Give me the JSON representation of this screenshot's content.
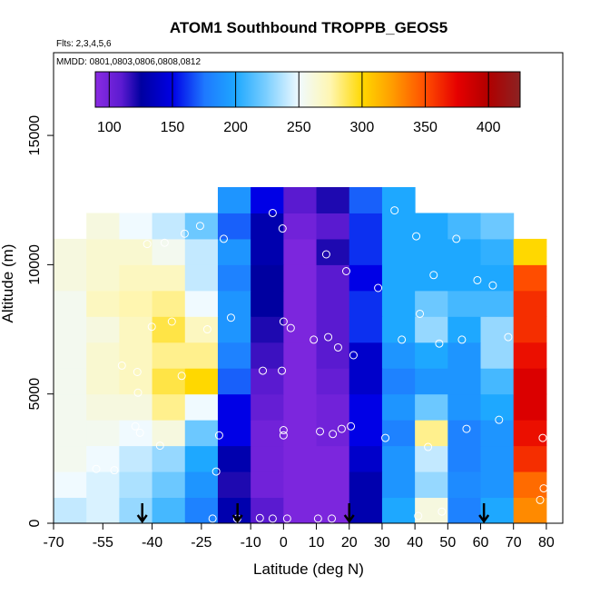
{
  "chart_data": {
    "type": "heatmap",
    "title": "ATOM1 Southbound TROPPB_GEOS5",
    "subtitle": "Flts: 2,3,4,5,6",
    "annotation": "MMDD: 0801,0803,0806,0808,0812",
    "x_label": "Latitude (deg N)",
    "y_label": "Altitude (m)",
    "xlim": [
      -70,
      85
    ],
    "ylim": [
      0,
      18200
    ],
    "xticks": [
      -70,
      -55,
      -40,
      -25,
      -10,
      0,
      10,
      20,
      30,
      40,
      50,
      60,
      70,
      80
    ],
    "yticks": [
      0,
      5000,
      10000,
      15000
    ],
    "xbins": [
      -70,
      -60,
      -50,
      -40,
      -30,
      -20,
      -10,
      0,
      10,
      20,
      30,
      40,
      50,
      60,
      70,
      80
    ],
    "ybins": [
      0,
      1000,
      2000,
      3000,
      4000,
      5000,
      6000,
      7000,
      8000,
      9000,
      10000,
      11000,
      12000,
      13000
    ],
    "z": [
      [
        240,
        245,
        230,
        210,
        180,
        130,
        110,
        95,
        95,
        130,
        200,
        260,
        180,
        200,
        330
      ],
      [
        250,
        245,
        235,
        220,
        190,
        120,
        100,
        95,
        95,
        130,
        190,
        230,
        185,
        190,
        340
      ],
      [
        255,
        250,
        240,
        230,
        200,
        130,
        100,
        95,
        95,
        140,
        190,
        240,
        180,
        190,
        360
      ],
      [
        255,
        255,
        250,
        260,
        220,
        150,
        100,
        95,
        100,
        150,
        180,
        280,
        180,
        190,
        370
      ],
      [
        255,
        260,
        260,
        280,
        250,
        150,
        105,
        95,
        100,
        150,
        190,
        220,
        190,
        200,
        380
      ],
      [
        255,
        265,
        270,
        290,
        300,
        170,
        110,
        95,
        105,
        140,
        180,
        190,
        190,
        210,
        380
      ],
      [
        255,
        265,
        270,
        280,
        280,
        180,
        115,
        95,
        110,
        140,
        190,
        200,
        190,
        230,
        370
      ],
      [
        255,
        260,
        270,
        290,
        270,
        190,
        120,
        95,
        110,
        160,
        200,
        230,
        200,
        230,
        360
      ],
      [
        255,
        270,
        275,
        280,
        250,
        190,
        125,
        95,
        110,
        160,
        200,
        220,
        210,
        210,
        360
      ],
      [
        260,
        265,
        270,
        270,
        240,
        180,
        125,
        95,
        110,
        150,
        200,
        200,
        200,
        200,
        350
      ],
      [
        260,
        265,
        265,
        255,
        240,
        190,
        130,
        95,
        120,
        160,
        200,
        200,
        200,
        205,
        300
      ],
      [
        null,
        260,
        250,
        240,
        220,
        170,
        130,
        100,
        110,
        160,
        200,
        200,
        210,
        220,
        null
      ],
      [
        null,
        null,
        null,
        null,
        null,
        190,
        150,
        110,
        120,
        170,
        200,
        null,
        null,
        null,
        null
      ]
    ],
    "colorlim": [
      89,
      425
    ],
    "colorticks": [
      100,
      150,
      200,
      250,
      300,
      350,
      400
    ],
    "colorscale": [
      [
        89,
        "#8a2be2"
      ],
      [
        110,
        "#5a1ad0"
      ],
      [
        125,
        "#0000a0"
      ],
      [
        150,
        "#0000e6"
      ],
      [
        175,
        "#1e78ff"
      ],
      [
        200,
        "#1ea8ff"
      ],
      [
        225,
        "#7fd0ff"
      ],
      [
        250,
        "#f0faff"
      ],
      [
        275,
        "#fff6b0"
      ],
      [
        300,
        "#ffd800"
      ],
      [
        325,
        "#ff9900"
      ],
      [
        350,
        "#ff4d00"
      ],
      [
        375,
        "#e60000"
      ],
      [
        400,
        "#b00000"
      ],
      [
        425,
        "#8b2323"
      ]
    ],
    "points": {
      "color": "#ffffff",
      "x": [
        -3.3,
        -0.3,
        -25.4,
        -18.2,
        -30.1,
        -41.5,
        -36.2,
        40.4,
        52.6,
        33.8,
        19.1,
        13,
        28.8,
        45.7,
        41.5,
        59,
        63.7,
        0,
        2.2,
        -16,
        -23.2,
        -34,
        -40.1,
        13.6,
        9.2,
        16.6,
        21.3,
        36,
        47.4,
        54.3,
        68.4,
        -6.3,
        -0.5,
        -31,
        -44.5,
        -49.2,
        -44.3,
        -45.1,
        -43.7,
        -19.6,
        0,
        0,
        11.1,
        15,
        17.7,
        20.5,
        31,
        44,
        55.7,
        65.6,
        78.9,
        -37.6,
        -20.5,
        -51.5,
        -57,
        1.1,
        -3.3,
        -7.2,
        -21.6,
        -14.1,
        10.5,
        14.7,
        41,
        48.2,
        78.1,
        79.2
      ],
      "y": [
        12000,
        11400,
        11500,
        11000,
        11200,
        10800,
        10850,
        11100,
        11000,
        12100,
        9750,
        10400,
        9100,
        9600,
        8100,
        9400,
        9200,
        7800,
        7550,
        7950,
        7500,
        7800,
        7600,
        7200,
        7100,
        6800,
        6500,
        7100,
        6950,
        7100,
        7200,
        5900,
        5900,
        5700,
        5850,
        6100,
        5050,
        3750,
        3500,
        3400,
        3600,
        3400,
        3550,
        3450,
        3650,
        3750,
        3300,
        2950,
        3650,
        4000,
        3300,
        3000,
        2000,
        2050,
        2100,
        180,
        180,
        200,
        180,
        180,
        180,
        180,
        280,
        450,
        900,
        1350
      ]
    },
    "arrows": [
      -43,
      -14,
      20,
      61
    ]
  }
}
